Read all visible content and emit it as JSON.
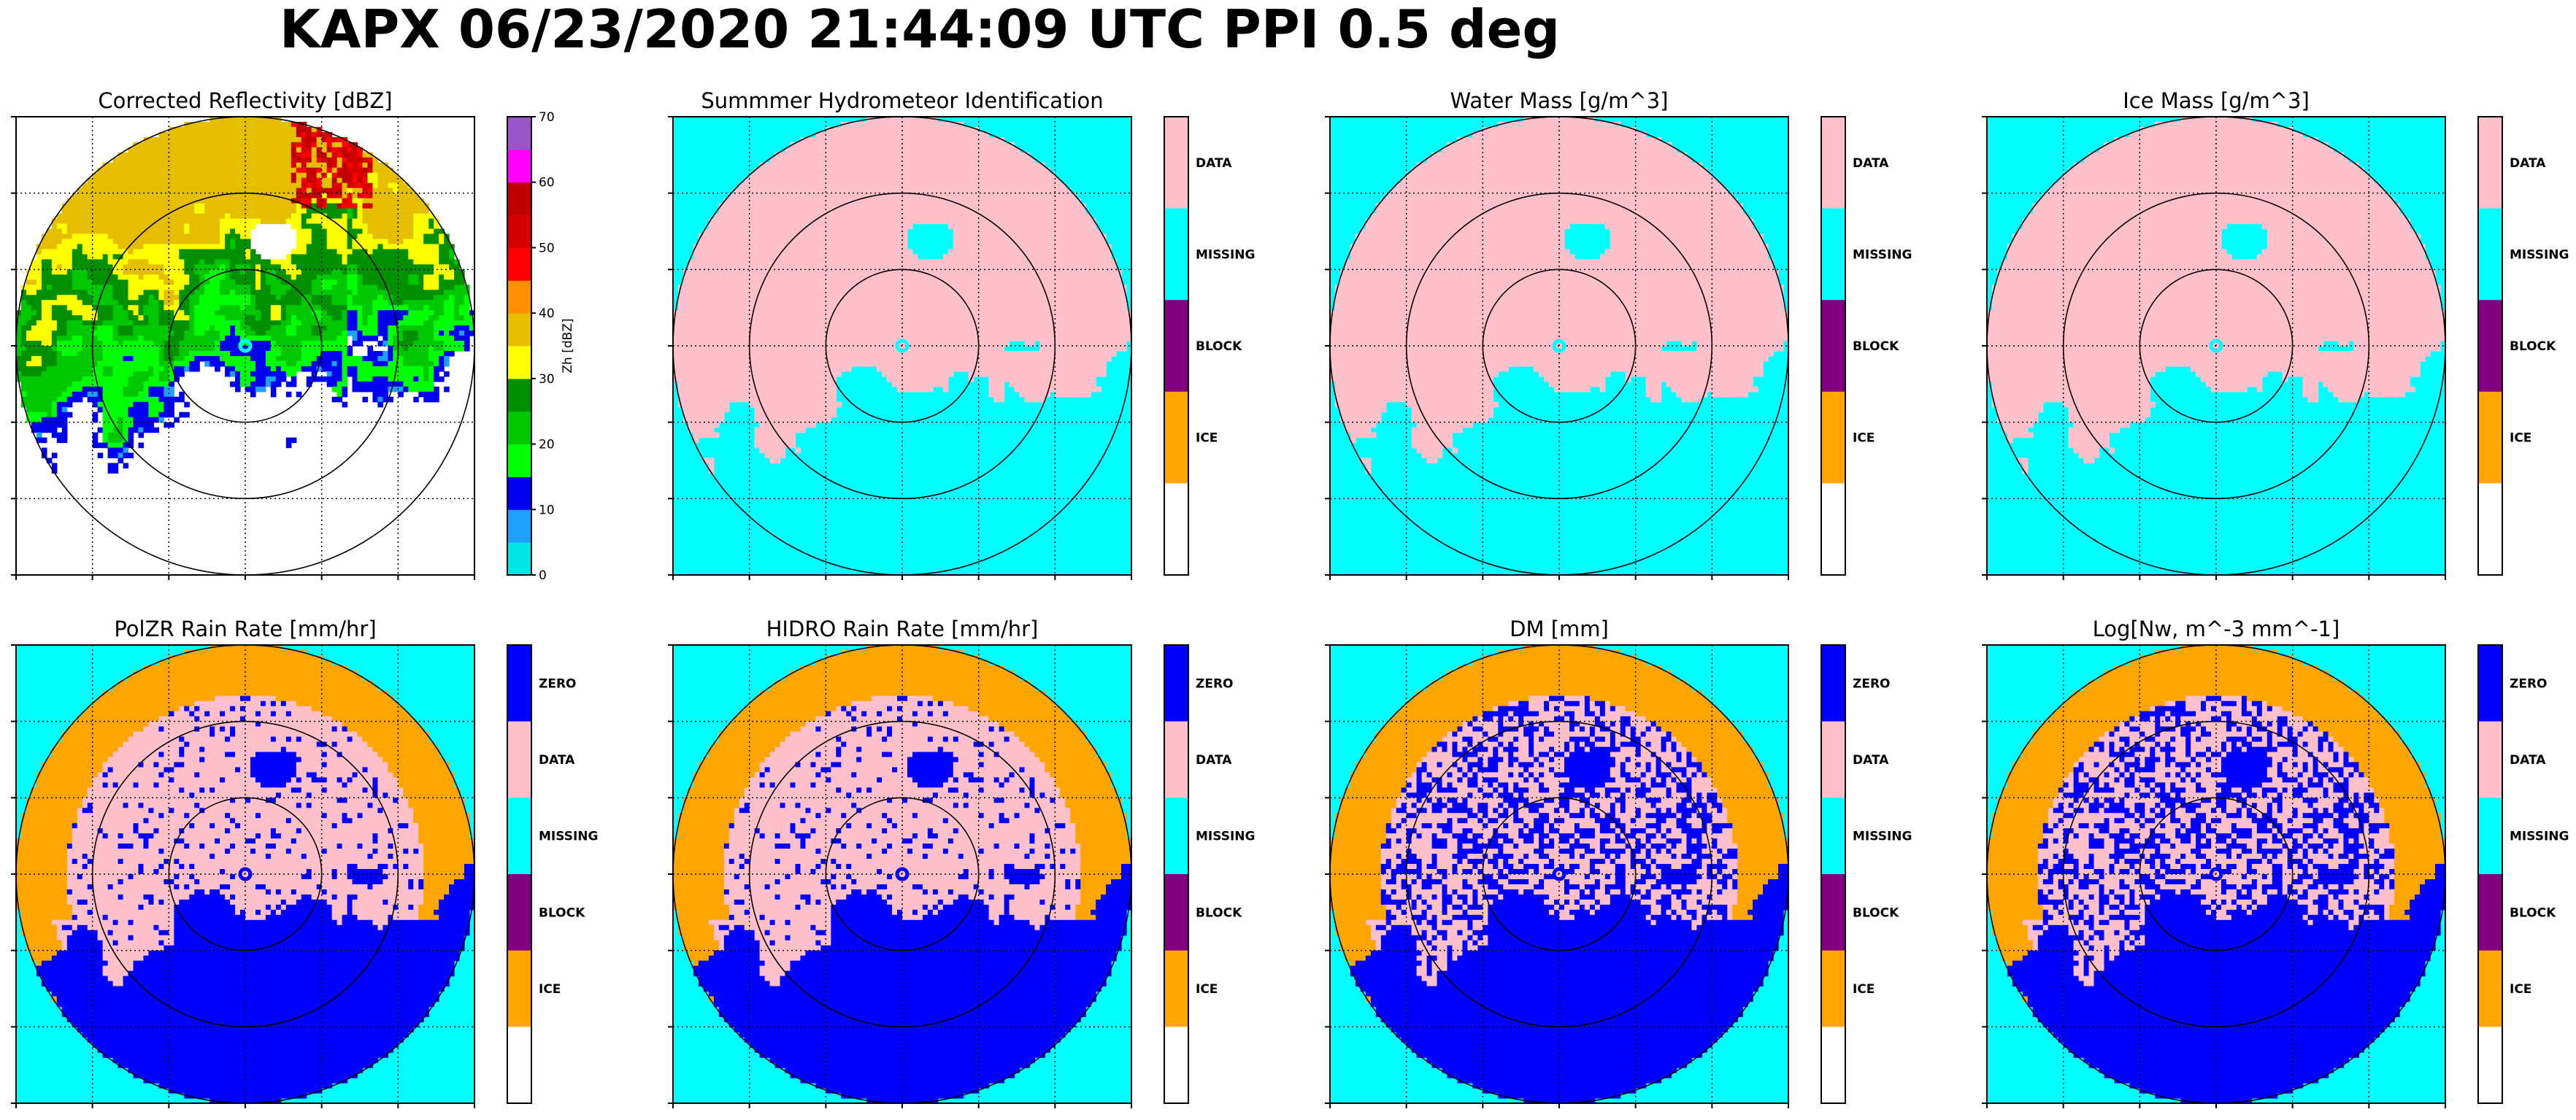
{
  "figure": {
    "title": "KAPX 06/23/2020 21:44:09 UTC PPI 0.5 deg"
  },
  "colors": {
    "missing": "#00FFFF",
    "data": "#FFC0CB",
    "zero": "#0000FF",
    "ice": "#FFA500",
    "block": "#800080",
    "ring": "#000000",
    "grid": "#000000"
  },
  "chart_data": [
    {
      "type": "heatmap",
      "title": "Corrected Reflectivity [dBZ]",
      "colorbar": {
        "kind": "continuous",
        "label": "Zh [dBZ]",
        "ticks": [
          "0",
          "10",
          "20",
          "30",
          "40",
          "50",
          "60",
          "70"
        ],
        "range": [
          0,
          70
        ],
        "colors": [
          "#00E5E5",
          "#1EA0FF",
          "#0000F0",
          "#00FF00",
          "#00C800",
          "#009000",
          "#FFFF00",
          "#E5BE00",
          "#FF9000",
          "#FF0000",
          "#D70000",
          "#C00000",
          "#FF00FF",
          "#9955C9"
        ]
      },
      "background": "#FFFFFF",
      "range_rings": 3,
      "grid": true
    },
    {
      "type": "heatmap",
      "title": "Summmer Hydrometeor Identification",
      "colorbar": {
        "kind": "categorical",
        "categories": [
          "DATA",
          "MISSING",
          "BLOCK",
          "ICE",
          ""
        ],
        "category_colors": [
          "#FFC0CB",
          "#00FFFF",
          "#800080",
          "#FFA500",
          "#FFFFFF"
        ]
      },
      "background": "#00FFFF",
      "range_rings": 3,
      "grid": true
    },
    {
      "type": "heatmap",
      "title": "Water Mass [g/m^3]",
      "colorbar": {
        "kind": "categorical",
        "categories": [
          "DATA",
          "MISSING",
          "BLOCK",
          "ICE",
          ""
        ],
        "category_colors": [
          "#FFC0CB",
          "#00FFFF",
          "#800080",
          "#FFA500",
          "#FFFFFF"
        ]
      },
      "background": "#00FFFF",
      "range_rings": 3,
      "grid": true
    },
    {
      "type": "heatmap",
      "title": "Ice Mass [g/m^3]",
      "colorbar": {
        "kind": "categorical",
        "categories": [
          "DATA",
          "MISSING",
          "BLOCK",
          "ICE",
          ""
        ],
        "category_colors": [
          "#FFC0CB",
          "#00FFFF",
          "#800080",
          "#FFA500",
          "#FFFFFF"
        ]
      },
      "background": "#00FFFF",
      "range_rings": 3,
      "grid": true
    },
    {
      "type": "heatmap",
      "title": "PolZR Rain Rate [mm/hr]",
      "colorbar": {
        "kind": "categorical",
        "categories": [
          "ZERO",
          "DATA",
          "MISSING",
          "BLOCK",
          "ICE",
          ""
        ],
        "category_colors": [
          "#0000FF",
          "#FFC0CB",
          "#00FFFF",
          "#800080",
          "#FFA500",
          "#FFFFFF"
        ]
      },
      "background": "#00FFFF",
      "range_rings": 3,
      "grid": true
    },
    {
      "type": "heatmap",
      "title": "HIDRO Rain Rate [mm/hr]",
      "colorbar": {
        "kind": "categorical",
        "categories": [
          "ZERO",
          "DATA",
          "MISSING",
          "BLOCK",
          "ICE",
          ""
        ],
        "category_colors": [
          "#0000FF",
          "#FFC0CB",
          "#00FFFF",
          "#800080",
          "#FFA500",
          "#FFFFFF"
        ]
      },
      "background": "#00FFFF",
      "range_rings": 3,
      "grid": true
    },
    {
      "type": "heatmap",
      "title": "DM [mm]",
      "colorbar": {
        "kind": "categorical",
        "categories": [
          "ZERO",
          "DATA",
          "MISSING",
          "BLOCK",
          "ICE",
          ""
        ],
        "category_colors": [
          "#0000FF",
          "#FFC0CB",
          "#00FFFF",
          "#800080",
          "#FFA500",
          "#FFFFFF"
        ]
      },
      "background": "#00FFFF",
      "range_rings": 3,
      "grid": true
    },
    {
      "type": "heatmap",
      "title": "Log[Nw, m^-3 mm^-1]",
      "colorbar": {
        "kind": "categorical",
        "categories": [
          "ZERO",
          "DATA",
          "MISSING",
          "BLOCK",
          "ICE",
          ""
        ],
        "category_colors": [
          "#0000FF",
          "#FFC0CB",
          "#00FFFF",
          "#800080",
          "#FFA500",
          "#FFFFFF"
        ]
      },
      "background": "#00FFFF",
      "range_rings": 3,
      "grid": true
    }
  ]
}
